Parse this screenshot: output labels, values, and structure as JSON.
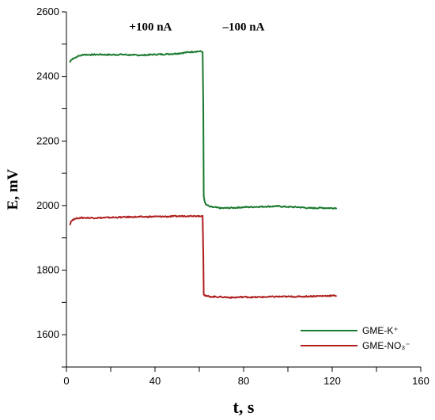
{
  "chart_data": {
    "type": "line",
    "title": "",
    "xlabel": "t, s",
    "ylabel": "E, mV",
    "xlim": [
      0,
      160
    ],
    "ylim": [
      1500,
      2600
    ],
    "xticks": [
      0,
      40,
      80,
      120,
      160
    ],
    "yticks": [
      1600,
      1800,
      2000,
      2200,
      2400,
      2600
    ],
    "grid": false,
    "legend_position": "bottom-right",
    "annotations": [
      {
        "text": "+100 nA",
        "x": 38,
        "y": 2555
      },
      {
        "text": "–100 nA",
        "x": 80,
        "y": 2555
      }
    ],
    "series": [
      {
        "name": "GME-K⁺",
        "color": "#1a7a2e",
        "x": [
          1.5,
          2,
          3,
          4,
          5,
          6,
          8,
          10,
          15,
          20,
          25,
          30,
          35,
          40,
          45,
          50,
          55,
          58,
          60,
          61.5,
          61.8,
          62,
          62.5,
          63,
          65,
          70,
          75,
          80,
          85,
          90,
          95,
          100,
          105,
          110,
          115,
          120,
          122
        ],
        "y": [
          2443,
          2450,
          2456,
          2458,
          2462,
          2464,
          2468,
          2467,
          2468,
          2467,
          2468,
          2466,
          2466,
          2468,
          2469,
          2471,
          2475,
          2477,
          2478,
          2476,
          2300,
          2030,
          2010,
          2003,
          1996,
          1992,
          1993,
          1995,
          1996,
          1997,
          1998,
          1996,
          1995,
          1992,
          1993,
          1992,
          1993
        ]
      },
      {
        "name": "GME-NO₃⁻",
        "color": "#b01e1e",
        "x": [
          1.5,
          2,
          3,
          4,
          5,
          6,
          8,
          10,
          15,
          20,
          25,
          30,
          35,
          40,
          45,
          50,
          55,
          58,
          60,
          61.5,
          61.8,
          62,
          62.5,
          63,
          65,
          70,
          75,
          80,
          85,
          90,
          95,
          100,
          105,
          110,
          115,
          120,
          122
        ],
        "y": [
          1940,
          1950,
          1957,
          1959,
          1961,
          1962,
          1962,
          1962,
          1962,
          1963,
          1964,
          1965,
          1965,
          1966,
          1966,
          1967,
          1968,
          1968,
          1968,
          1968,
          1850,
          1725,
          1721,
          1720,
          1718,
          1717,
          1715,
          1717,
          1716,
          1717,
          1718,
          1718,
          1718,
          1719,
          1720,
          1721,
          1721
        ]
      }
    ]
  }
}
